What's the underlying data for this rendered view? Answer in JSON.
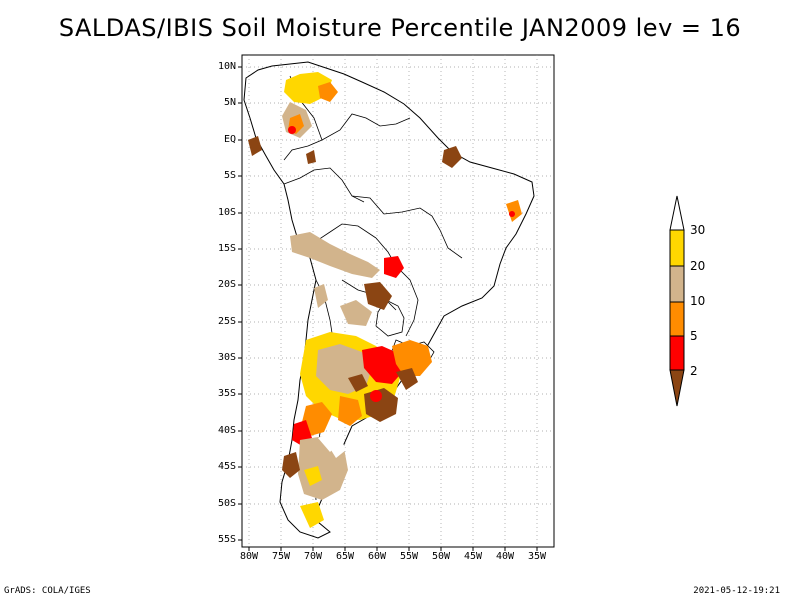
{
  "title": "SALDAS/IBIS Soil Moisture Percentile JAN2009 lev = 16",
  "axes": {
    "lat_labels": [
      "10N",
      "5N",
      "EQ",
      "5S",
      "10S",
      "15S",
      "20S",
      "25S",
      "30S",
      "35S",
      "40S",
      "45S",
      "50S",
      "55S"
    ],
    "lon_labels": [
      "80W",
      "75W",
      "70W",
      "65W",
      "60W",
      "55W",
      "50W",
      "45W",
      "40W",
      "35W"
    ]
  },
  "colorbar": {
    "levels": [
      "2",
      "5",
      "10",
      "20",
      "30"
    ],
    "colors": [
      "#8b4513",
      "#ff0000",
      "#ff8c00",
      "#d2b48c",
      "#ffd700"
    ]
  },
  "footer": {
    "left": "GrADS: COLA/IGES",
    "right": "2021-05-12-19:21"
  }
}
